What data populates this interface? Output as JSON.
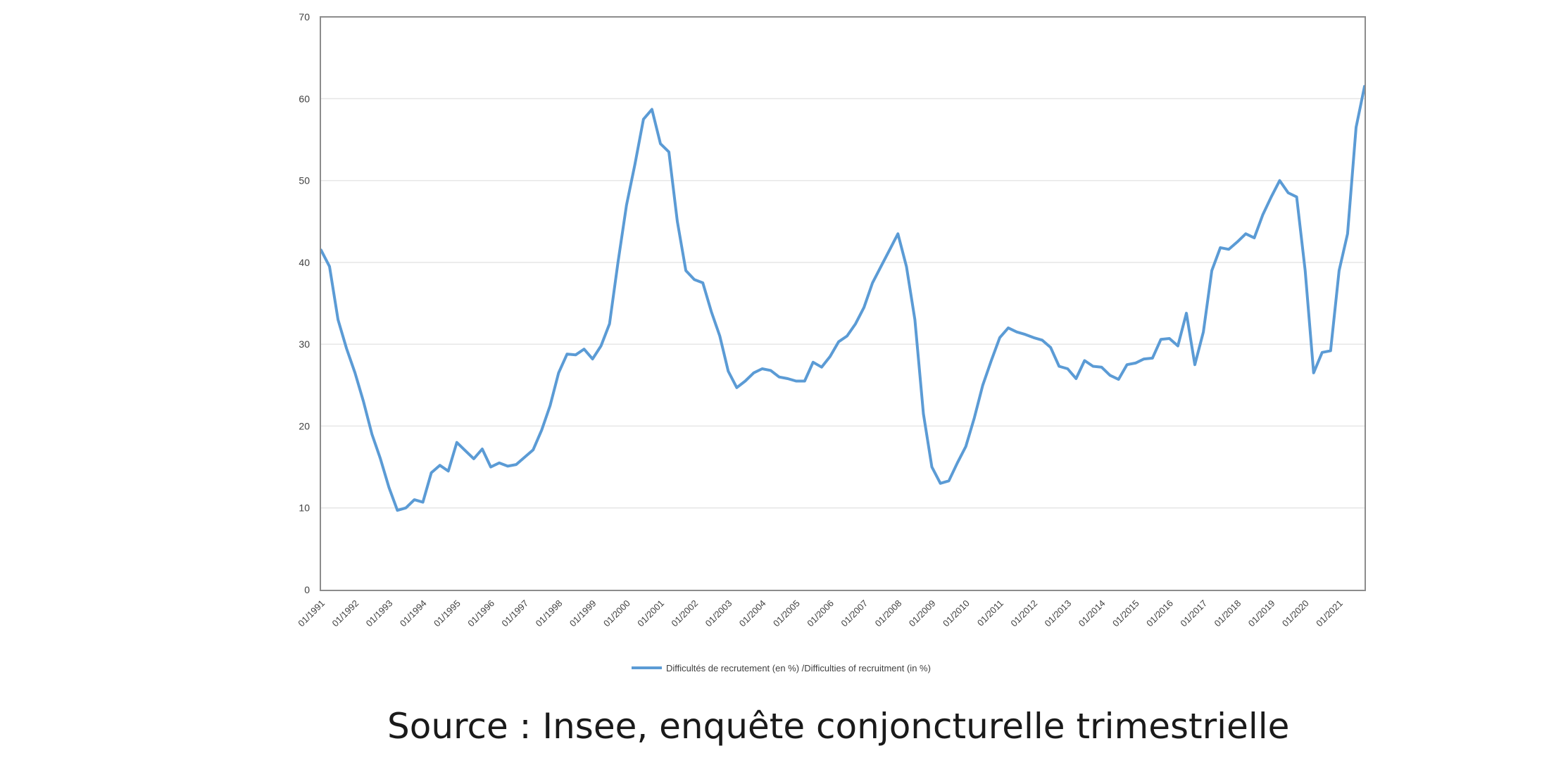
{
  "chart_data": {
    "type": "line",
    "title": "",
    "xlabel": "",
    "ylabel": "",
    "ylim": [
      0,
      70
    ],
    "yticks": [
      "0",
      "10",
      "20",
      "30",
      "40",
      "50",
      "60",
      "70"
    ],
    "xtick_labels": [
      "01/1991",
      "01/1992",
      "01/1993",
      "01/1994",
      "01/1995",
      "01/1996",
      "01/1997",
      "01/1998",
      "01/1999",
      "01/2000",
      "01/2001",
      "01/2002",
      "01/2003",
      "01/2004",
      "01/2005",
      "01/2006",
      "01/2007",
      "01/2008",
      "01/2009",
      "01/2010",
      "01/2011",
      "01/2012",
      "01/2013",
      "01/2014",
      "01/2015",
      "01/2016",
      "01/2017",
      "01/2018",
      "01/2019",
      "01/2020",
      "01/2021"
    ],
    "grid": true,
    "legend_position": "bottom",
    "series": [
      {
        "name": "Difficultés de recrutement (en %) /Difficulties of recruitment (in %)",
        "color": "#5b9bd5",
        "x": [
          "1991-Q1",
          "1991-Q2",
          "1991-Q3",
          "1991-Q4",
          "1992-Q1",
          "1992-Q2",
          "1992-Q3",
          "1992-Q4",
          "1993-Q1",
          "1993-Q2",
          "1993-Q3",
          "1993-Q4",
          "1994-Q1",
          "1994-Q2",
          "1994-Q3",
          "1994-Q4",
          "1995-Q1",
          "1995-Q2",
          "1995-Q3",
          "1995-Q4",
          "1996-Q1",
          "1996-Q2",
          "1996-Q3",
          "1996-Q4",
          "1997-Q1",
          "1997-Q2",
          "1997-Q3",
          "1997-Q4",
          "1998-Q1",
          "1998-Q2",
          "1998-Q3",
          "1998-Q4",
          "1999-Q1",
          "1999-Q2",
          "1999-Q3",
          "1999-Q4",
          "2000-Q1",
          "2000-Q2",
          "2000-Q3",
          "2000-Q4",
          "2001-Q1",
          "2001-Q2",
          "2001-Q3",
          "2001-Q4",
          "2002-Q1",
          "2002-Q2",
          "2002-Q3",
          "2002-Q4",
          "2003-Q1",
          "2003-Q2",
          "2003-Q3",
          "2003-Q4",
          "2004-Q1",
          "2004-Q2",
          "2004-Q3",
          "2004-Q4",
          "2005-Q1",
          "2005-Q2",
          "2005-Q3",
          "2005-Q4",
          "2006-Q1",
          "2006-Q2",
          "2006-Q3",
          "2006-Q4",
          "2007-Q1",
          "2007-Q2",
          "2007-Q3",
          "2007-Q4",
          "2008-Q1",
          "2008-Q2",
          "2008-Q3",
          "2008-Q4",
          "2009-Q1",
          "2009-Q2",
          "2009-Q3",
          "2009-Q4",
          "2010-Q1",
          "2010-Q2",
          "2010-Q3",
          "2010-Q4",
          "2011-Q1",
          "2011-Q2",
          "2011-Q3",
          "2011-Q4",
          "2012-Q1",
          "2012-Q2",
          "2012-Q3",
          "2012-Q4",
          "2013-Q1",
          "2013-Q2",
          "2013-Q3",
          "2013-Q4",
          "2014-Q1",
          "2014-Q2",
          "2014-Q3",
          "2014-Q4",
          "2015-Q1",
          "2015-Q2",
          "2015-Q3",
          "2015-Q4",
          "2016-Q1",
          "2016-Q2",
          "2016-Q3",
          "2016-Q4",
          "2017-Q1",
          "2017-Q2",
          "2017-Q3",
          "2017-Q4",
          "2018-Q1",
          "2018-Q2",
          "2018-Q3",
          "2018-Q4",
          "2019-Q1",
          "2019-Q2",
          "2019-Q3",
          "2019-Q4",
          "2020-Q1",
          "2020-Q2",
          "2020-Q3",
          "2020-Q4",
          "2021-Q1",
          "2021-Q2",
          "2021-Q3",
          "2021-Q4"
        ],
        "values": [
          41.5,
          39.5,
          33,
          29.5,
          26.5,
          23,
          19,
          16,
          12.5,
          9.7,
          10,
          11,
          10.7,
          14.3,
          15.2,
          14.5,
          18,
          17,
          16,
          17.2,
          15,
          15.5,
          15.1,
          15.3,
          16.2,
          17.1,
          19.5,
          22.5,
          26.5,
          28.8,
          28.7,
          29.4,
          28.2,
          29.8,
          32.5,
          40,
          47,
          52,
          57.5,
          58.7,
          54.5,
          53.5,
          45,
          39,
          37.9,
          37.5,
          34,
          31,
          26.7,
          24.7,
          25.5,
          26.5,
          27,
          26.8,
          26,
          25.8,
          25.5,
          25.5,
          27.8,
          27.2,
          28.5,
          30.3,
          31,
          32.5,
          34.5,
          37.5,
          39.5,
          41.5,
          43.5,
          39.5,
          33,
          21.5,
          15,
          13,
          13.3,
          15.5,
          17.5,
          21,
          25,
          28,
          30.8,
          32,
          31.5,
          31.2,
          30.8,
          30.5,
          29.6,
          27.3,
          27,
          25.8,
          28,
          27.3,
          27.2,
          26.2,
          25.7,
          27.5,
          27.7,
          28.2,
          28.3,
          30.6,
          30.7,
          29.8,
          33.8,
          27.5,
          31.5,
          39,
          41.8,
          41.6,
          42.5,
          43.5,
          43,
          45.8,
          48,
          50,
          48.5,
          48,
          39,
          26.5,
          29,
          29.2,
          39,
          43.5,
          56.5,
          61.5
        ]
      }
    ]
  },
  "source_text": "Source : Insee, enquête conjoncturelle trimestrielle"
}
